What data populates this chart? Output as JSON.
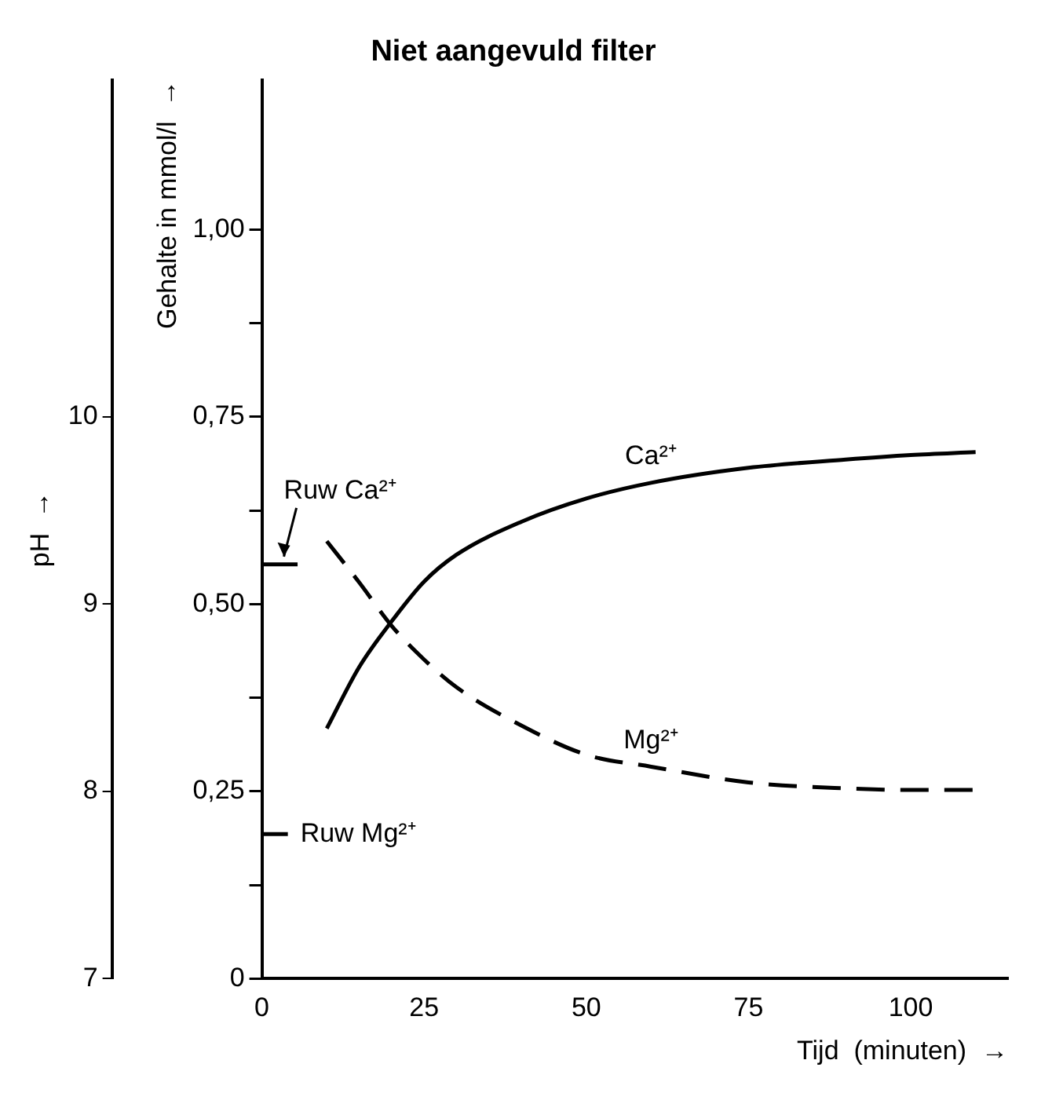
{
  "chart_data": {
    "type": "line",
    "title": "Niet aangevuld filter",
    "xlabel": "Tijd  (minuten)  →",
    "ylabel": "Gehalte in mmol/l  →",
    "y2label": "pH  →",
    "x": [
      10,
      15,
      20,
      25,
      30,
      40,
      50,
      60,
      75,
      90,
      100,
      110
    ],
    "series": [
      {
        "name": "Ca²⁺",
        "color": "#000000",
        "line_style": "solid",
        "values": [
          0.334,
          0.416,
          0.477,
          0.53,
          0.566,
          0.61,
          0.641,
          0.662,
          0.682,
          0.693,
          0.699,
          0.703
        ]
      },
      {
        "name": "Mg²⁺",
        "color": "#000000",
        "line_style": "dashed",
        "values": [
          0.584,
          0.529,
          0.471,
          0.426,
          0.389,
          0.338,
          0.299,
          0.283,
          0.262,
          0.254,
          0.252,
          0.252
        ]
      },
      {
        "name": "Ruw Ca²⁺",
        "color": "#000000",
        "line_style": "solid",
        "x": [
          0,
          5.5
        ],
        "values": [
          0.553,
          0.553
        ]
      },
      {
        "name": "Ruw Mg²⁺",
        "color": "#000000",
        "line_style": "dashed",
        "x": [
          0,
          4
        ],
        "values": [
          0.193,
          0.193
        ]
      }
    ],
    "xlim": [
      0,
      115
    ],
    "xticks": [
      0,
      25,
      50,
      75,
      100
    ],
    "ylim": [
      0,
      1.2
    ],
    "yticks": [
      {
        "value": 0,
        "label": "0"
      },
      {
        "value": 0.125,
        "label": null
      },
      {
        "value": 0.25,
        "label": "0,25"
      },
      {
        "value": 0.375,
        "label": null
      },
      {
        "value": 0.5,
        "label": "0,50"
      },
      {
        "value": 0.625,
        "label": null
      },
      {
        "value": 0.75,
        "label": "0,75"
      },
      {
        "value": 0.875,
        "label": null
      },
      {
        "value": 1,
        "label": "1,00"
      }
    ],
    "y2lim": [
      7,
      11.8
    ],
    "y2ticks": [
      7,
      8,
      9,
      10
    ],
    "grid": false,
    "legend": false,
    "marker": "none"
  }
}
